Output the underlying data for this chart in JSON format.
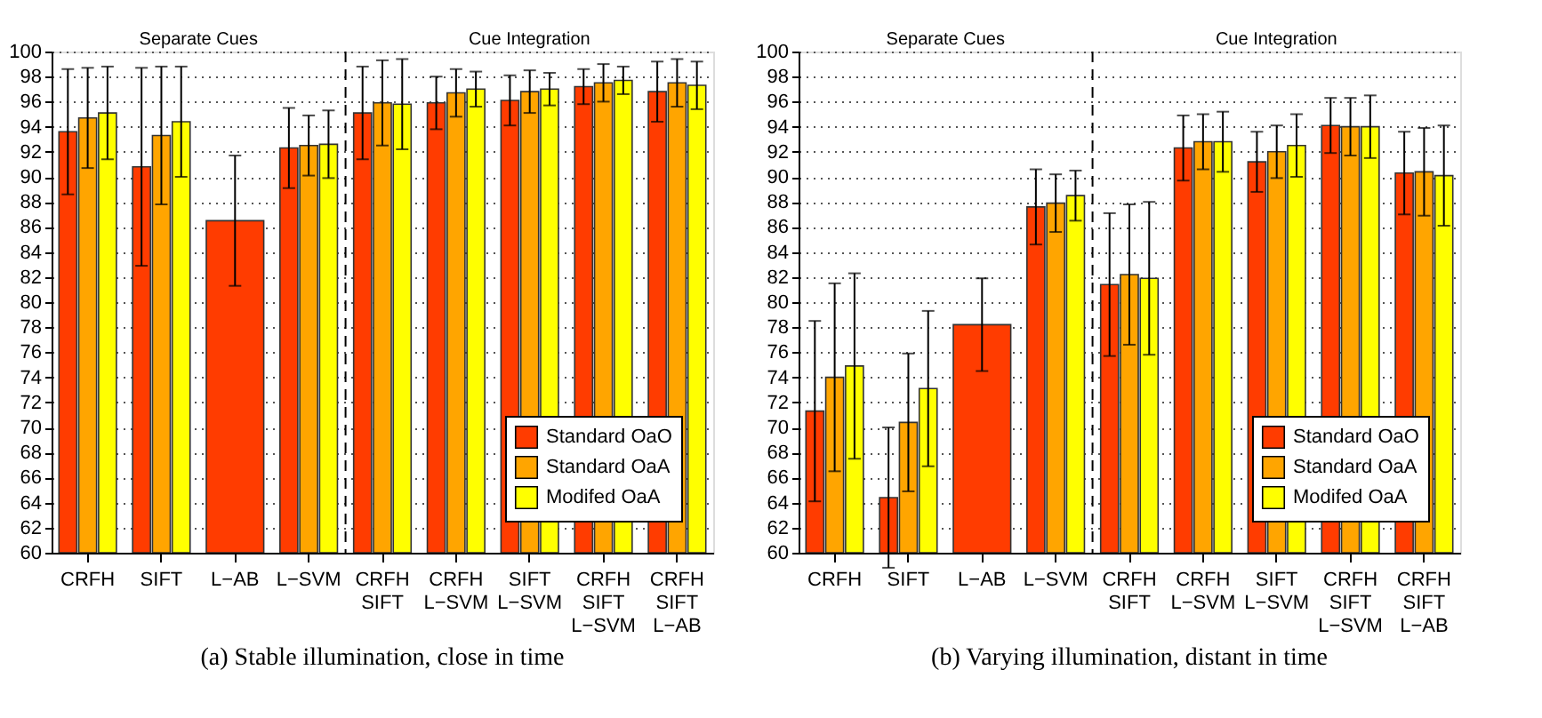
{
  "chart_data": [
    {
      "type": "bar",
      "categories": [
        "CRFH",
        "SIFT",
        "L−AB",
        "L−SVM",
        "CRFH\nSIFT",
        "CRFH\nL−SVM",
        "SIFT\nL−SVM",
        "CRFH\nSIFT\nL−SVM",
        "CRFH\nSIFT\nL−AB"
      ],
      "series": [
        {
          "name": "Standard OaO",
          "color": "#ff3c00",
          "values": [
            93.6,
            90.8,
            86.5,
            92.3,
            95.1,
            95.9,
            96.1,
            97.2,
            96.8
          ],
          "errors": [
            5.0,
            7.9,
            5.2,
            3.2,
            3.7,
            2.1,
            2.0,
            1.4,
            2.4
          ]
        },
        {
          "name": "Standard OaA",
          "color": "#ffa500",
          "values": [
            94.7,
            93.3,
            null,
            92.5,
            95.9,
            96.7,
            96.8,
            97.5,
            97.5
          ],
          "errors": [
            4.0,
            5.5,
            null,
            2.4,
            3.4,
            1.9,
            1.7,
            1.5,
            1.9
          ]
        },
        {
          "name": "Modifed OaA",
          "color": "#ffff00",
          "values": [
            95.1,
            94.4,
            null,
            92.6,
            95.8,
            97.0,
            97.0,
            97.7,
            97.3
          ],
          "errors": [
            3.7,
            4.4,
            null,
            2.7,
            3.6,
            1.4,
            1.3,
            1.1,
            1.9
          ]
        }
      ],
      "ylim": [
        60,
        100
      ],
      "yticks": [
        60,
        62,
        64,
        66,
        68,
        70,
        72,
        74,
        76,
        78,
        80,
        82,
        84,
        86,
        88,
        90,
        92,
        94,
        96,
        98,
        100
      ],
      "grid": "y",
      "legend": "bottom right",
      "ref_lines": [
        {
          "axis": "x",
          "value": "CRFH\nSIFT",
          "line_style": "dashed"
        }
      ],
      "annotations": [
        "Separate Cues",
        "Cue Integration",
        "(a) Stable illumination, close in time"
      ]
    },
    {
      "type": "bar",
      "categories": [
        "CRFH",
        "SIFT",
        "L−AB",
        "L−SVM",
        "CRFH\nSIFT",
        "CRFH\nL−SVM",
        "SIFT\nL−SVM",
        "CRFH\nSIFT\nL−SVM",
        "CRFH\nSIFT\nL−AB"
      ],
      "series": [
        {
          "name": "Standard OaO",
          "color": "#ff3c00",
          "values": [
            71.3,
            64.4,
            78.2,
            87.6,
            81.4,
            92.3,
            91.2,
            94.1,
            90.3
          ],
          "errors": [
            7.2,
            5.6,
            3.7,
            3.0,
            5.7,
            2.6,
            2.4,
            2.2,
            3.3
          ]
        },
        {
          "name": "Standard OaA",
          "color": "#ffa500",
          "values": [
            74.0,
            70.4,
            null,
            87.9,
            82.2,
            92.8,
            92.0,
            94.0,
            90.4
          ],
          "errors": [
            7.5,
            5.5,
            null,
            2.3,
            5.6,
            2.2,
            2.1,
            2.3,
            3.5
          ]
        },
        {
          "name": "Modifed OaA",
          "color": "#ffff00",
          "values": [
            74.9,
            73.1,
            null,
            88.5,
            81.9,
            92.8,
            92.5,
            94.0,
            90.1
          ],
          "errors": [
            7.4,
            6.2,
            null,
            2.0,
            6.1,
            2.4,
            2.5,
            2.5,
            4.0
          ]
        }
      ],
      "ylim": [
        60,
        100
      ],
      "yticks": [
        60,
        62,
        64,
        66,
        68,
        70,
        72,
        74,
        76,
        78,
        80,
        82,
        84,
        86,
        88,
        90,
        92,
        94,
        96,
        98,
        100
      ],
      "grid": "y",
      "legend": "bottom right",
      "ref_lines": [
        {
          "axis": "x",
          "value": "CRFH\nSIFT",
          "line_style": "dashed"
        }
      ],
      "annotations": [
        "Separate Cues",
        "Cue Integration",
        "(b) Varying illumination, distant in time"
      ]
    }
  ]
}
